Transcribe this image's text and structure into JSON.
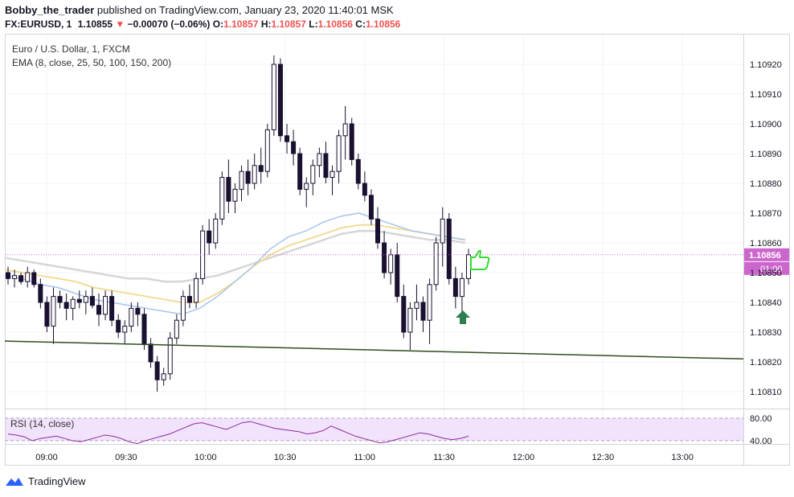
{
  "header": {
    "author": "Bobby_the_trader",
    "published_text": "published on TradingView.com, January 23, 2020 11:40:01 MSK",
    "symbol": "FX:EURUSD, 1",
    "last_price": "1.10855",
    "change_arrow": "▼",
    "change_text": "−0.00070 (−0.06%)",
    "open_label": "O:",
    "open_value": "1.10857",
    "high_label": "H:",
    "high_value": "1.10857",
    "low_label": "L:",
    "low_value": "1.10856",
    "close_label": "C:",
    "close_value": "1.10856"
  },
  "legend": {
    "title": "Euro / U.S. Dollar, 1, FXCM",
    "ema": "EMA (8, close, 25, 50, 100, 150, 200)",
    "rsi": "RSI (14, close)"
  },
  "footer": {
    "brand": "TradingView"
  },
  "colors": {
    "candle_body": "#1a1030",
    "ema_blue": "#a8c4ec",
    "ema_yellow": "#f3dc95",
    "ema_gray": "#d6d6d6",
    "trendline": "#2e4d1f",
    "rsi_line": "#8e2a9c",
    "rsi_band": "#f1e3fb",
    "price_tag": "#cc66cc",
    "arrow_green": "#2e7d4f",
    "thumb_green": "#33dd33"
  },
  "chart_data": {
    "type": "candlestick",
    "y_ticks": [
      "1.10920",
      "1.10910",
      "1.10900",
      "1.10890",
      "1.10880",
      "1.10870",
      "1.10860",
      "1.10850",
      "1.10840",
      "1.10830",
      "1.10820",
      "1.10810"
    ],
    "y_range": [
      1.10805,
      1.10937
    ],
    "x_ticks": [
      "09:00",
      "09:30",
      "10:00",
      "10:30",
      "11:00",
      "11:30",
      "12:00",
      "12:30",
      "13:00"
    ],
    "current_price_tag": "1.10856",
    "countdown_tag": "01:00",
    "rsi_ticks": [
      "80.00",
      "40.00"
    ],
    "candles": [
      [
        1.1085,
        1.10852,
        1.10846,
        1.10848
      ],
      [
        1.10848,
        1.10851,
        1.10845,
        1.10849
      ],
      [
        1.10849,
        1.1085,
        1.10846,
        1.10847
      ],
      [
        1.10847,
        1.10852,
        1.10845,
        1.1085
      ],
      [
        1.1085,
        1.10851,
        1.10845,
        1.10846
      ],
      [
        1.10846,
        1.10848,
        1.10838,
        1.1084
      ],
      [
        1.1084,
        1.10842,
        1.1083,
        1.10832
      ],
      [
        1.10832,
        1.10845,
        1.10826,
        1.10842
      ],
      [
        1.10842,
        1.10844,
        1.10838,
        1.1084
      ],
      [
        1.1084,
        1.10843,
        1.10834,
        1.10838
      ],
      [
        1.10838,
        1.10842,
        1.10834,
        1.10841
      ],
      [
        1.10841,
        1.10844,
        1.10838,
        1.1084
      ],
      [
        1.1084,
        1.10844,
        1.10836,
        1.10842
      ],
      [
        1.10842,
        1.10845,
        1.10838,
        1.10839
      ],
      [
        1.10839,
        1.10843,
        1.10832,
        1.10836
      ],
      [
        1.10836,
        1.10844,
        1.10834,
        1.10842
      ],
      [
        1.10842,
        1.10844,
        1.10832,
        1.10834
      ],
      [
        1.10834,
        1.10836,
        1.10828,
        1.1083
      ],
      [
        1.1083,
        1.10834,
        1.10826,
        1.10832
      ],
      [
        1.10832,
        1.1084,
        1.1083,
        1.10838
      ],
      [
        1.10838,
        1.1084,
        1.10832,
        1.10836
      ],
      [
        1.10836,
        1.10838,
        1.10824,
        1.10826
      ],
      [
        1.10826,
        1.10828,
        1.10818,
        1.1082
      ],
      [
        1.1082,
        1.10822,
        1.1081,
        1.10814
      ],
      [
        1.10814,
        1.10818,
        1.10812,
        1.10816
      ],
      [
        1.10816,
        1.1083,
        1.10814,
        1.10828
      ],
      [
        1.10828,
        1.10836,
        1.10826,
        1.10834
      ],
      [
        1.10834,
        1.10844,
        1.10832,
        1.10842
      ],
      [
        1.10842,
        1.10846,
        1.10838,
        1.1084
      ],
      [
        1.1084,
        1.1085,
        1.10838,
        1.10848
      ],
      [
        1.10848,
        1.10866,
        1.10846,
        1.10864
      ],
      [
        1.10864,
        1.10868,
        1.10856,
        1.1086
      ],
      [
        1.1086,
        1.1087,
        1.10858,
        1.10868
      ],
      [
        1.10868,
        1.10884,
        1.10866,
        1.10882
      ],
      [
        1.10882,
        1.10888,
        1.1087,
        1.10874
      ],
      [
        1.10874,
        1.1088,
        1.1087,
        1.10878
      ],
      [
        1.10878,
        1.10886,
        1.10874,
        1.10884
      ],
      [
        1.10884,
        1.10888,
        1.10876,
        1.1088
      ],
      [
        1.1088,
        1.1089,
        1.10878,
        1.10886
      ],
      [
        1.10886,
        1.10892,
        1.1088,
        1.10884
      ],
      [
        1.10884,
        1.109,
        1.10882,
        1.10898
      ],
      [
        1.10898,
        1.10923,
        1.10896,
        1.1092
      ],
      [
        1.1092,
        1.10922,
        1.10894,
        1.10896
      ],
      [
        1.10896,
        1.109,
        1.1089,
        1.10894
      ],
      [
        1.10894,
        1.10898,
        1.10886,
        1.1089
      ],
      [
        1.1089,
        1.10892,
        1.10876,
        1.10878
      ],
      [
        1.10878,
        1.10882,
        1.10872,
        1.1088
      ],
      [
        1.1088,
        1.10888,
        1.10876,
        1.10886
      ],
      [
        1.10886,
        1.10892,
        1.10882,
        1.1089
      ],
      [
        1.1089,
        1.10894,
        1.1088,
        1.10882
      ],
      [
        1.10882,
        1.10886,
        1.10876,
        1.10884
      ],
      [
        1.10884,
        1.10898,
        1.1088,
        1.10896
      ],
      [
        1.10896,
        1.10906,
        1.10888,
        1.109
      ],
      [
        1.109,
        1.10902,
        1.10886,
        1.10888
      ],
      [
        1.10888,
        1.1089,
        1.10878,
        1.1088
      ],
      [
        1.1088,
        1.10884,
        1.10874,
        1.10876
      ],
      [
        1.10876,
        1.10878,
        1.10866,
        1.10868
      ],
      [
        1.10868,
        1.10872,
        1.10858,
        1.1086
      ],
      [
        1.1086,
        1.10864,
        1.10848,
        1.1085
      ],
      [
        1.1085,
        1.10858,
        1.10846,
        1.10856
      ],
      [
        1.10856,
        1.1086,
        1.1084,
        1.10842
      ],
      [
        1.10842,
        1.10846,
        1.10828,
        1.1083
      ],
      [
        1.1083,
        1.1084,
        1.10824,
        1.10838
      ],
      [
        1.10838,
        1.10846,
        1.10834,
        1.1084
      ],
      [
        1.1084,
        1.10842,
        1.1083,
        1.10834
      ],
      [
        1.10834,
        1.10848,
        1.10826,
        1.10846
      ],
      [
        1.10846,
        1.10862,
        1.10844,
        1.1086
      ],
      [
        1.1086,
        1.10872,
        1.10852,
        1.10868
      ],
      [
        1.10868,
        1.1087,
        1.10846,
        1.10848
      ],
      [
        1.10848,
        1.10852,
        1.10838,
        1.10842
      ],
      [
        1.10842,
        1.1085,
        1.10836,
        1.10848
      ],
      [
        1.10848,
        1.10858,
        1.10846,
        1.10856
      ]
    ],
    "ema_blue": [
      1.10849,
      1.10848,
      1.10846,
      1.10845,
      1.10843,
      1.10841,
      1.1084,
      1.10839,
      1.10838,
      1.10837,
      1.10836,
      1.10838,
      1.10842,
      1.10847,
      1.10852,
      1.10858,
      1.10862,
      1.10864,
      1.10867,
      1.10869,
      1.1087,
      1.10868,
      1.10866,
      1.10864,
      1.10863,
      1.10862,
      1.10861
    ],
    "ema_yellow": [
      1.10851,
      1.1085,
      1.10849,
      1.10848,
      1.10847,
      1.10845,
      1.10844,
      1.10843,
      1.10842,
      1.10841,
      1.1084,
      1.1084,
      1.10843,
      1.10847,
      1.10852,
      1.10856,
      1.10859,
      1.10861,
      1.10863,
      1.10865,
      1.10866,
      1.10866,
      1.10865,
      1.10864,
      1.10863,
      1.10862,
      1.10861
    ],
    "ema_gray": [
      1.10855,
      1.10854,
      1.10853,
      1.10852,
      1.10851,
      1.1085,
      1.10849,
      1.10848,
      1.10848,
      1.10847,
      1.10847,
      1.10848,
      1.10849,
      1.10851,
      1.10853,
      1.10855,
      1.10857,
      1.10859,
      1.10861,
      1.10863,
      1.10864,
      1.10864,
      1.10863,
      1.10862,
      1.10861,
      1.10861,
      1.1086
    ],
    "trendline": [
      [
        0,
        1.10827
      ],
      [
        1.0,
        1.10821
      ]
    ],
    "rsi": [
      52,
      50,
      47,
      40,
      44,
      46,
      48,
      44,
      40,
      38,
      42,
      46,
      50,
      48,
      44,
      38,
      35,
      40,
      44,
      48,
      52,
      58,
      64,
      70,
      72,
      68,
      64,
      60,
      66,
      72,
      74,
      70,
      66,
      62,
      60,
      58,
      56,
      52,
      54,
      58,
      66,
      60,
      54,
      48,
      44,
      40,
      36,
      38,
      42,
      46,
      50,
      54,
      52,
      48,
      44,
      42,
      44,
      48
    ]
  }
}
